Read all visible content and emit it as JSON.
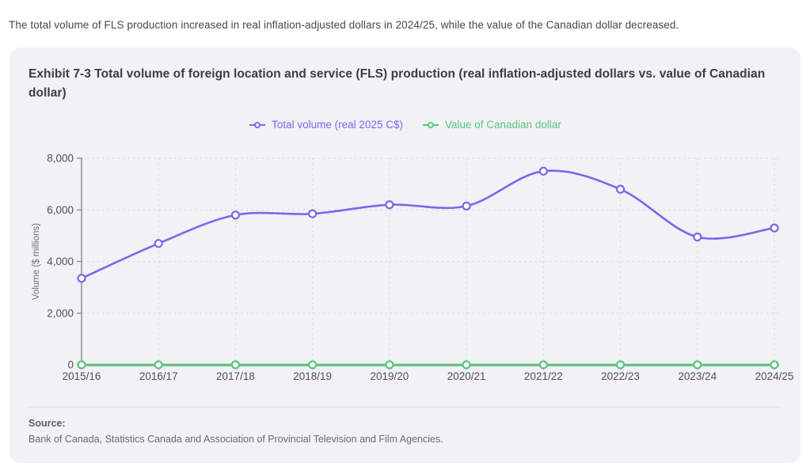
{
  "page": {
    "intro": "The total volume of FLS production increased in real inflation-adjusted dollars in 2024/25, while the value of the Canadian dollar decreased."
  },
  "card": {
    "title": "Exhibit 7-3 Total volume of foreign location and service (FLS) production (real inflation-adjusted dollars vs. value of Canadian dollar)",
    "source_label": "Source:",
    "source_text": "Bank of Canada, Statistics Canada and Association of Provincial Television and Film Agencies."
  },
  "chart_data": {
    "type": "line",
    "title": "Exhibit 7-3 Total volume of foreign location and service (FLS) production (real inflation-adjusted dollars vs. value of Canadian dollar)",
    "categories": [
      "2015/16",
      "2016/17",
      "2017/18",
      "2018/19",
      "2019/20",
      "2020/21",
      "2021/22",
      "2022/23",
      "2023/24",
      "2024/25"
    ],
    "series": [
      {
        "name": "Total volume (real 2025 C$)",
        "color": "#7b68e8",
        "values": [
          3350,
          4700,
          5800,
          5850,
          6200,
          6150,
          7500,
          6800,
          4950,
          5300
        ]
      },
      {
        "name": "Value of Canadian dollar",
        "color": "#58c87a",
        "values": [
          0.76,
          0.76,
          0.78,
          0.77,
          0.75,
          0.76,
          0.8,
          0.77,
          0.74,
          0.72
        ]
      }
    ],
    "xlabel": "",
    "ylabel": "Volume ($ millions)",
    "ylim": [
      0,
      8000
    ],
    "yticks": [
      0,
      2000,
      4000,
      6000,
      8000
    ],
    "grid": true,
    "legend_position": "top",
    "marker": "open-circle"
  },
  "colors": {
    "page_background": "#ffffff",
    "card_background": "#f1f1f6",
    "axis": "#8d8d95",
    "gridline": "#d8d8df",
    "tick_text": "#50505a",
    "axis_label_text": "#6e6e79",
    "title_text": "#3c3c45",
    "intro_text": "#46464e",
    "source_text": "#6a6a74"
  }
}
